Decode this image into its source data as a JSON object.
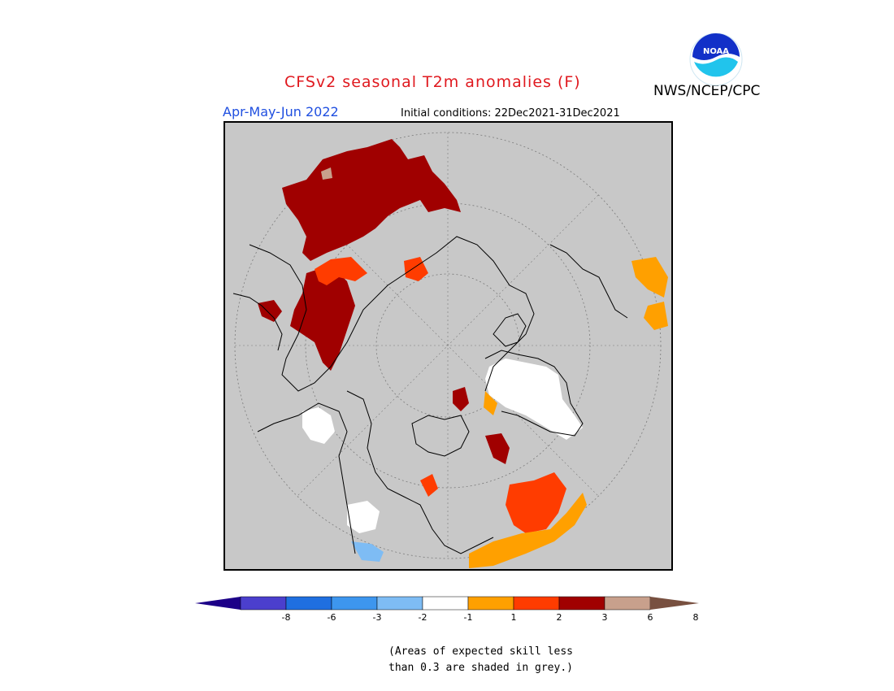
{
  "header": {
    "title": "CFSv2 seasonal T2m anomalies (F)",
    "agency": "NWS/NCEP/CPC",
    "season": "Apr-May-Jun 2022",
    "initial_conditions": "Initial conditions: 22Dec2021-31Dec2021"
  },
  "logo": {
    "icon": "noaa-logo-icon",
    "text": "NOAA"
  },
  "map": {
    "projection": "north-polar-stereographic",
    "background_color": "#c8c8c8",
    "shaded_regions": [
      {
        "region": "Northern Asia / Siberia",
        "category": "3 to 6"
      },
      {
        "region": "Eastern Siberia",
        "category": "2 to 3"
      },
      {
        "region": "Northern Europe / Scandinavia",
        "category": "-1 to 1"
      },
      {
        "region": "Eastern Canada",
        "category": "2 to 3"
      },
      {
        "region": "Alaska",
        "category": "-1 to 1"
      },
      {
        "region": "Northeast Africa",
        "category": "1 to 2"
      }
    ]
  },
  "colorbar": {
    "colors": [
      "#1c0088",
      "#4b3fcd",
      "#1f6fe0",
      "#3d96ee",
      "#7ebcf4",
      "#ffffff",
      "#ffa000",
      "#ff3c00",
      "#a00000",
      "#c8a08c",
      "#785040"
    ],
    "tick_labels": [
      "-8",
      "-6",
      "-3",
      "-2",
      "-1",
      "1",
      "2",
      "3",
      "6",
      "8"
    ]
  },
  "note": {
    "line1": "(Areas of expected skill less",
    "line2": "than 0.3 are shaded in grey.)"
  }
}
